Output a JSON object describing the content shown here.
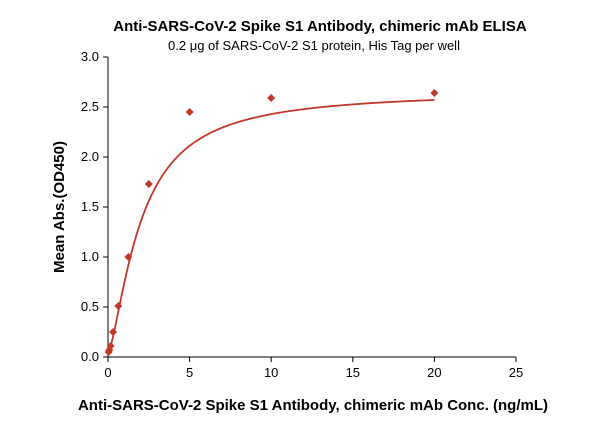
{
  "chart_data": {
    "type": "scatter",
    "title": "Anti-SARS-CoV-2 Spike S1 Antibody, chimeric mAb ELISA",
    "subtitle": "0.2 μg of SARS-CoV-2 S1 protein, His Tag per well",
    "xlabel": "Anti-SARS-CoV-2 Spike S1 Antibody, chimeric mAb Conc. (ng/mL)",
    "ylabel": "Mean Abs.(OD450)",
    "xlim": [
      0,
      25
    ],
    "ylim": [
      0,
      3.0
    ],
    "x_ticks": [
      "0",
      "5",
      "10",
      "15",
      "20",
      "25"
    ],
    "y_ticks": [
      "0.0",
      "0.5",
      "1.0",
      "1.5",
      "2.0",
      "2.5",
      "3.0"
    ],
    "grid": false,
    "legend": "none",
    "series": [
      {
        "x": [
          0.04,
          0.08,
          0.16,
          0.31,
          0.63,
          1.25,
          2.5,
          5,
          10,
          20
        ],
        "y": [
          0.05,
          0.07,
          0.11,
          0.25,
          0.51,
          1.0,
          1.73,
          2.45,
          2.59,
          2.64
        ],
        "color": "#c0392b",
        "marker": "diamond",
        "fit": "sigmoidal curve"
      }
    ]
  }
}
